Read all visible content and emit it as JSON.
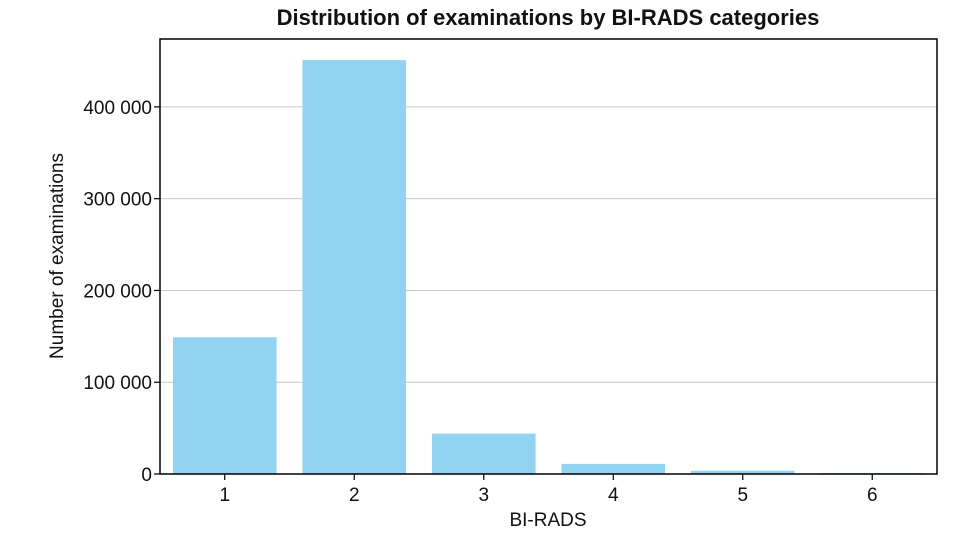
{
  "chart_data": {
    "type": "bar",
    "title": "Distribution of examinations by BI-RADS categories",
    "xlabel": "BI-RADS",
    "ylabel": "Number of examinations",
    "categories": [
      "1",
      "2",
      "3",
      "4",
      "5",
      "6"
    ],
    "values": [
      149000,
      451000,
      44000,
      11000,
      3500,
      1000
    ],
    "ylim": [
      0,
      474000
    ],
    "yticks": [
      0,
      100000,
      200000,
      300000,
      400000
    ],
    "ytick_labels": [
      "0",
      "100 000",
      "200 000",
      "300 000",
      "400 000"
    ],
    "grid": "horizontal",
    "legend": "none",
    "colors": {
      "bar": "#93d3f2",
      "grid": "#c8c8c8",
      "axis": "#000000"
    }
  }
}
